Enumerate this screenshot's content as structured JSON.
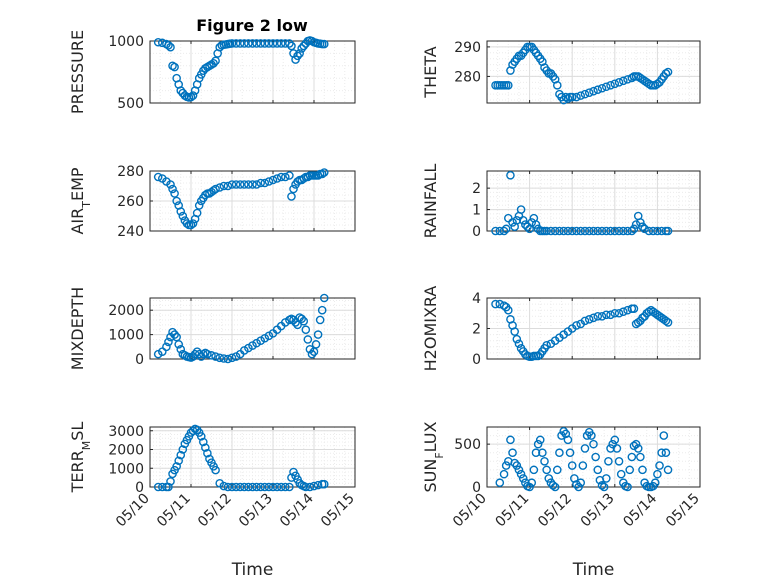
{
  "title": "Figure 2 low",
  "chart_data": [
    {
      "type": "scatter",
      "ylabel": "PRESSURE",
      "ylim": [
        500,
        1000
      ],
      "yticks": [
        500,
        1000
      ],
      "x": [
        10.2,
        10.3,
        10.4,
        10.45,
        10.5,
        10.55,
        10.6,
        10.65,
        10.7,
        10.75,
        10.8,
        10.85,
        10.9,
        10.95,
        11.0,
        11.05,
        11.1,
        11.15,
        11.2,
        11.25,
        11.3,
        11.35,
        11.4,
        11.45,
        11.5,
        11.55,
        11.6,
        11.65,
        11.7,
        11.75,
        11.8,
        11.85,
        11.9,
        11.95,
        12.0,
        12.1,
        12.2,
        12.3,
        12.4,
        12.5,
        12.6,
        12.7,
        12.8,
        12.9,
        13.0,
        13.1,
        13.2,
        13.3,
        13.4,
        13.45,
        13.5,
        13.55,
        13.6,
        13.65,
        13.7,
        13.75,
        13.8,
        13.85,
        13.9,
        13.95,
        14.0,
        14.05,
        14.1,
        14.15,
        14.2,
        14.25
      ],
      "y": [
        990,
        985,
        975,
        965,
        950,
        800,
        790,
        700,
        650,
        600,
        580,
        560,
        550,
        545,
        548,
        560,
        600,
        650,
        700,
        730,
        760,
        780,
        790,
        800,
        810,
        820,
        840,
        900,
        950,
        965,
        970,
        972,
        975,
        978,
        980,
        980,
        980,
        980,
        980,
        980,
        980,
        980,
        980,
        980,
        980,
        980,
        980,
        980,
        980,
        960,
        900,
        850,
        880,
        900,
        940,
        960,
        980,
        1000,
        1005,
        1000,
        990,
        985,
        980,
        978,
        975,
        975
      ],
      "color": "#0072BD"
    },
    {
      "type": "scatter",
      "ylabel": "THETA",
      "ylim": [
        271,
        292
      ],
      "yticks": [
        280,
        290
      ],
      "x": [
        10.2,
        10.25,
        10.3,
        10.35,
        10.4,
        10.45,
        10.5,
        10.55,
        10.6,
        10.65,
        10.7,
        10.75,
        10.8,
        10.85,
        10.9,
        10.95,
        11.0,
        11.05,
        11.1,
        11.15,
        11.2,
        11.25,
        11.3,
        11.35,
        11.4,
        11.45,
        11.5,
        11.55,
        11.6,
        11.65,
        11.7,
        11.75,
        11.8,
        11.85,
        11.9,
        11.95,
        12.0,
        12.1,
        12.2,
        12.3,
        12.4,
        12.5,
        12.6,
        12.7,
        12.8,
        12.9,
        13.0,
        13.1,
        13.2,
        13.3,
        13.4,
        13.45,
        13.5,
        13.55,
        13.6,
        13.65,
        13.7,
        13.75,
        13.8,
        13.85,
        13.9,
        13.95,
        14.0,
        14.05,
        14.1,
        14.15,
        14.2,
        14.25
      ],
      "y": [
        277,
        277,
        277,
        277,
        277,
        277,
        277,
        282,
        284,
        285,
        286,
        287,
        287,
        288,
        289,
        290,
        290,
        290,
        289,
        288,
        287,
        286,
        285,
        283,
        282,
        281,
        281,
        280,
        279,
        277,
        274,
        273,
        272,
        273,
        272.5,
        273,
        273,
        273,
        273.5,
        274,
        274.5,
        275,
        275.5,
        276,
        276.5,
        277,
        277.5,
        278,
        278.5,
        279,
        279.5,
        280,
        280,
        280,
        279.5,
        279,
        278.5,
        278,
        277.5,
        277,
        277,
        277,
        277.5,
        278,
        279,
        280,
        281,
        281.5
      ],
      "color": "#0072BD"
    },
    {
      "type": "scatter",
      "ylabel": "AIR_TEMP",
      "ylim": [
        240,
        280
      ],
      "yticks": [
        240,
        260,
        280
      ],
      "x": [
        10.2,
        10.3,
        10.4,
        10.5,
        10.55,
        10.6,
        10.65,
        10.7,
        10.75,
        10.8,
        10.85,
        10.9,
        10.95,
        11.0,
        11.05,
        11.1,
        11.15,
        11.2,
        11.25,
        11.3,
        11.35,
        11.4,
        11.45,
        11.5,
        11.55,
        11.6,
        11.7,
        11.8,
        11.9,
        12.0,
        12.1,
        12.2,
        12.3,
        12.4,
        12.5,
        12.6,
        12.7,
        12.8,
        12.9,
        13.0,
        13.1,
        13.2,
        13.3,
        13.4,
        13.45,
        13.5,
        13.55,
        13.6,
        13.65,
        13.7,
        13.75,
        13.8,
        13.85,
        13.9,
        13.95,
        14.0,
        14.05,
        14.1,
        14.15,
        14.2,
        14.25
      ],
      "y": [
        276,
        275,
        273,
        271,
        268,
        265,
        260,
        257,
        253,
        250,
        247,
        245,
        244,
        244,
        245,
        248,
        252,
        257,
        260,
        262,
        264,
        265,
        265,
        266,
        267,
        268,
        269,
        270,
        270,
        271,
        271,
        271,
        271,
        271,
        271,
        271,
        272,
        272,
        273,
        274,
        275,
        276,
        276,
        277,
        263,
        268,
        271,
        273,
        274,
        274,
        275,
        276,
        276,
        277,
        277,
        277,
        277,
        277,
        278,
        278,
        279
      ],
      "color": "#0072BD"
    },
    {
      "type": "scatter",
      "ylabel": "RAINFALL",
      "ylim": [
        0,
        2.8
      ],
      "yticks": [
        0,
        1,
        2
      ],
      "x": [
        10.2,
        10.3,
        10.4,
        10.45,
        10.5,
        10.55,
        10.6,
        10.65,
        10.7,
        10.75,
        10.8,
        10.85,
        10.9,
        10.95,
        11.0,
        11.05,
        11.1,
        11.15,
        11.2,
        11.25,
        11.3,
        11.35,
        11.4,
        11.5,
        11.6,
        11.7,
        11.8,
        11.9,
        12.0,
        12.1,
        12.2,
        12.3,
        12.4,
        12.5,
        12.6,
        12.7,
        12.8,
        12.9,
        13.0,
        13.1,
        13.2,
        13.3,
        13.4,
        13.45,
        13.5,
        13.55,
        13.6,
        13.65,
        13.7,
        13.8,
        13.9,
        14.0,
        14.1,
        14.2,
        14.25
      ],
      "y": [
        0,
        0,
        0,
        0.1,
        0.6,
        2.6,
        0.4,
        0.2,
        0.5,
        0.7,
        1.0,
        0.5,
        0.3,
        0.2,
        0.1,
        0.4,
        0.6,
        0.3,
        0.1,
        0,
        0,
        0,
        0,
        0,
        0,
        0,
        0,
        0,
        0,
        0,
        0,
        0,
        0,
        0,
        0,
        0,
        0,
        0,
        0,
        0,
        0,
        0,
        0,
        0.1,
        0.3,
        0.7,
        0.4,
        0.2,
        0.1,
        0,
        0,
        0,
        0,
        0,
        0
      ],
      "color": "#0072BD"
    },
    {
      "type": "scatter",
      "ylabel": "MIXDEPTH",
      "ylim": [
        0,
        2500
      ],
      "yticks": [
        0,
        1000,
        2000
      ],
      "x": [
        10.2,
        10.3,
        10.4,
        10.45,
        10.5,
        10.55,
        10.6,
        10.65,
        10.7,
        10.75,
        10.8,
        10.85,
        10.9,
        10.95,
        11.0,
        11.05,
        11.1,
        11.15,
        11.2,
        11.25,
        11.3,
        11.35,
        11.4,
        11.5,
        11.6,
        11.7,
        11.8,
        11.9,
        12.0,
        12.1,
        12.2,
        12.3,
        12.4,
        12.5,
        12.6,
        12.7,
        12.8,
        12.9,
        13.0,
        13.1,
        13.2,
        13.3,
        13.4,
        13.45,
        13.5,
        13.55,
        13.6,
        13.65,
        13.7,
        13.75,
        13.8,
        13.85,
        13.9,
        13.95,
        14.0,
        14.05,
        14.1,
        14.15,
        14.2,
        14.25
      ],
      "y": [
        200,
        300,
        500,
        700,
        900,
        1100,
        1000,
        900,
        600,
        400,
        200,
        150,
        100,
        80,
        60,
        100,
        200,
        300,
        200,
        100,
        200,
        250,
        200,
        150,
        100,
        50,
        20,
        0,
        50,
        100,
        200,
        350,
        450,
        550,
        650,
        750,
        850,
        950,
        1050,
        1200,
        1350,
        1500,
        1600,
        1650,
        1600,
        1500,
        1400,
        1700,
        1650,
        1550,
        1200,
        800,
        400,
        200,
        300,
        600,
        1000,
        1600,
        2000,
        2500
      ],
      "color": "#0072BD"
    },
    {
      "type": "scatter",
      "ylabel": "H2OMIXRA",
      "ylim": [
        0,
        4
      ],
      "yticks": [
        0,
        2,
        4
      ],
      "x": [
        10.2,
        10.3,
        10.4,
        10.45,
        10.5,
        10.55,
        10.6,
        10.65,
        10.7,
        10.75,
        10.8,
        10.85,
        10.9,
        10.95,
        11.0,
        11.05,
        11.1,
        11.15,
        11.2,
        11.25,
        11.3,
        11.35,
        11.4,
        11.5,
        11.6,
        11.7,
        11.8,
        11.9,
        12.0,
        12.1,
        12.2,
        12.3,
        12.4,
        12.5,
        12.6,
        12.7,
        12.8,
        12.9,
        13.0,
        13.1,
        13.2,
        13.3,
        13.4,
        13.45,
        13.5,
        13.55,
        13.6,
        13.65,
        13.7,
        13.75,
        13.8,
        13.85,
        13.9,
        13.95,
        14.0,
        14.05,
        14.1,
        14.15,
        14.2,
        14.25
      ],
      "y": [
        3.6,
        3.6,
        3.5,
        3.4,
        3.2,
        2.6,
        2.2,
        1.8,
        1.3,
        1.0,
        0.7,
        0.5,
        0.3,
        0.2,
        0.15,
        0.15,
        0.2,
        0.2,
        0.2,
        0.3,
        0.5,
        0.7,
        0.9,
        1.0,
        1.2,
        1.4,
        1.6,
        1.8,
        2.0,
        2.2,
        2.3,
        2.5,
        2.6,
        2.7,
        2.8,
        2.8,
        2.9,
        2.9,
        3.0,
        3.0,
        3.1,
        3.2,
        3.3,
        3.3,
        2.3,
        2.4,
        2.5,
        2.7,
        2.8,
        3.0,
        3.1,
        3.2,
        3.1,
        3.0,
        2.9,
        2.8,
        2.7,
        2.6,
        2.5,
        2.4
      ],
      "color": "#0072BD"
    },
    {
      "type": "scatter",
      "ylabel": "TERR_MSL",
      "ylim": [
        0,
        3200
      ],
      "yticks": [
        0,
        1000,
        2000,
        3000
      ],
      "x": [
        10.2,
        10.3,
        10.4,
        10.45,
        10.5,
        10.55,
        10.6,
        10.65,
        10.7,
        10.75,
        10.8,
        10.85,
        10.9,
        10.95,
        11.0,
        11.05,
        11.1,
        11.15,
        11.2,
        11.25,
        11.3,
        11.35,
        11.4,
        11.45,
        11.5,
        11.55,
        11.6,
        11.7,
        11.8,
        11.9,
        12.0,
        12.1,
        12.2,
        12.3,
        12.4,
        12.5,
        12.6,
        12.7,
        12.8,
        12.9,
        13.0,
        13.1,
        13.2,
        13.3,
        13.4,
        13.45,
        13.5,
        13.55,
        13.6,
        13.65,
        13.7,
        13.75,
        13.8,
        13.9,
        14.0,
        14.1,
        14.2,
        14.25
      ],
      "y": [
        0,
        0,
        0,
        0,
        300,
        700,
        900,
        1100,
        1400,
        1700,
        2000,
        2300,
        2500,
        2700,
        2900,
        3000,
        3100,
        3050,
        2900,
        2700,
        2400,
        2100,
        1800,
        1500,
        1300,
        1100,
        900,
        200,
        50,
        0,
        0,
        0,
        0,
        0,
        0,
        0,
        0,
        0,
        0,
        0,
        0,
        0,
        0,
        0,
        0,
        500,
        800,
        600,
        400,
        200,
        100,
        50,
        0,
        0,
        50,
        100,
        150,
        150
      ],
      "color": "#0072BD"
    },
    {
      "type": "scatter",
      "ylabel": "SUN_FLUX",
      "ylim": [
        0,
        700
      ],
      "yticks": [
        0,
        500
      ],
      "x": [
        10.3,
        10.4,
        10.45,
        10.5,
        10.55,
        10.6,
        10.65,
        10.7,
        10.75,
        10.8,
        10.85,
        10.9,
        10.95,
        11.0,
        11.05,
        11.1,
        11.15,
        11.2,
        11.25,
        11.3,
        11.35,
        11.4,
        11.45,
        11.5,
        11.55,
        11.6,
        11.65,
        11.7,
        11.75,
        11.8,
        11.85,
        11.9,
        11.95,
        12.0,
        12.05,
        12.1,
        12.15,
        12.2,
        12.25,
        12.3,
        12.35,
        12.4,
        12.45,
        12.5,
        12.55,
        12.6,
        12.65,
        12.7,
        12.75,
        12.8,
        12.85,
        12.9,
        12.95,
        13.0,
        13.05,
        13.1,
        13.15,
        13.2,
        13.25,
        13.3,
        13.35,
        13.4,
        13.45,
        13.5,
        13.55,
        13.6,
        13.65,
        13.7,
        13.75,
        13.8,
        13.85,
        13.9,
        13.95,
        14.0,
        14.05,
        14.1,
        14.15,
        14.2,
        14.25
      ],
      "y": [
        50,
        150,
        250,
        300,
        550,
        400,
        280,
        250,
        200,
        150,
        100,
        50,
        10,
        0,
        50,
        200,
        400,
        500,
        550,
        400,
        300,
        200,
        100,
        50,
        20,
        0,
        200,
        400,
        600,
        650,
        620,
        550,
        400,
        250,
        100,
        30,
        0,
        50,
        250,
        450,
        600,
        640,
        600,
        500,
        350,
        200,
        80,
        20,
        0,
        100,
        300,
        450,
        500,
        550,
        450,
        300,
        150,
        50,
        10,
        0,
        200,
        350,
        480,
        500,
        450,
        350,
        200,
        50,
        10,
        0,
        0,
        10,
        50,
        150,
        250,
        400,
        600,
        400,
        200
      ],
      "color": "#0072BD"
    }
  ],
  "x_axis": {
    "label": "Time",
    "ticks": [
      10,
      11,
      12,
      13,
      14,
      15
    ],
    "tick_labels": [
      "05/10",
      "05/11",
      "05/12",
      "05/13",
      "05/14",
      "05/15"
    ]
  }
}
